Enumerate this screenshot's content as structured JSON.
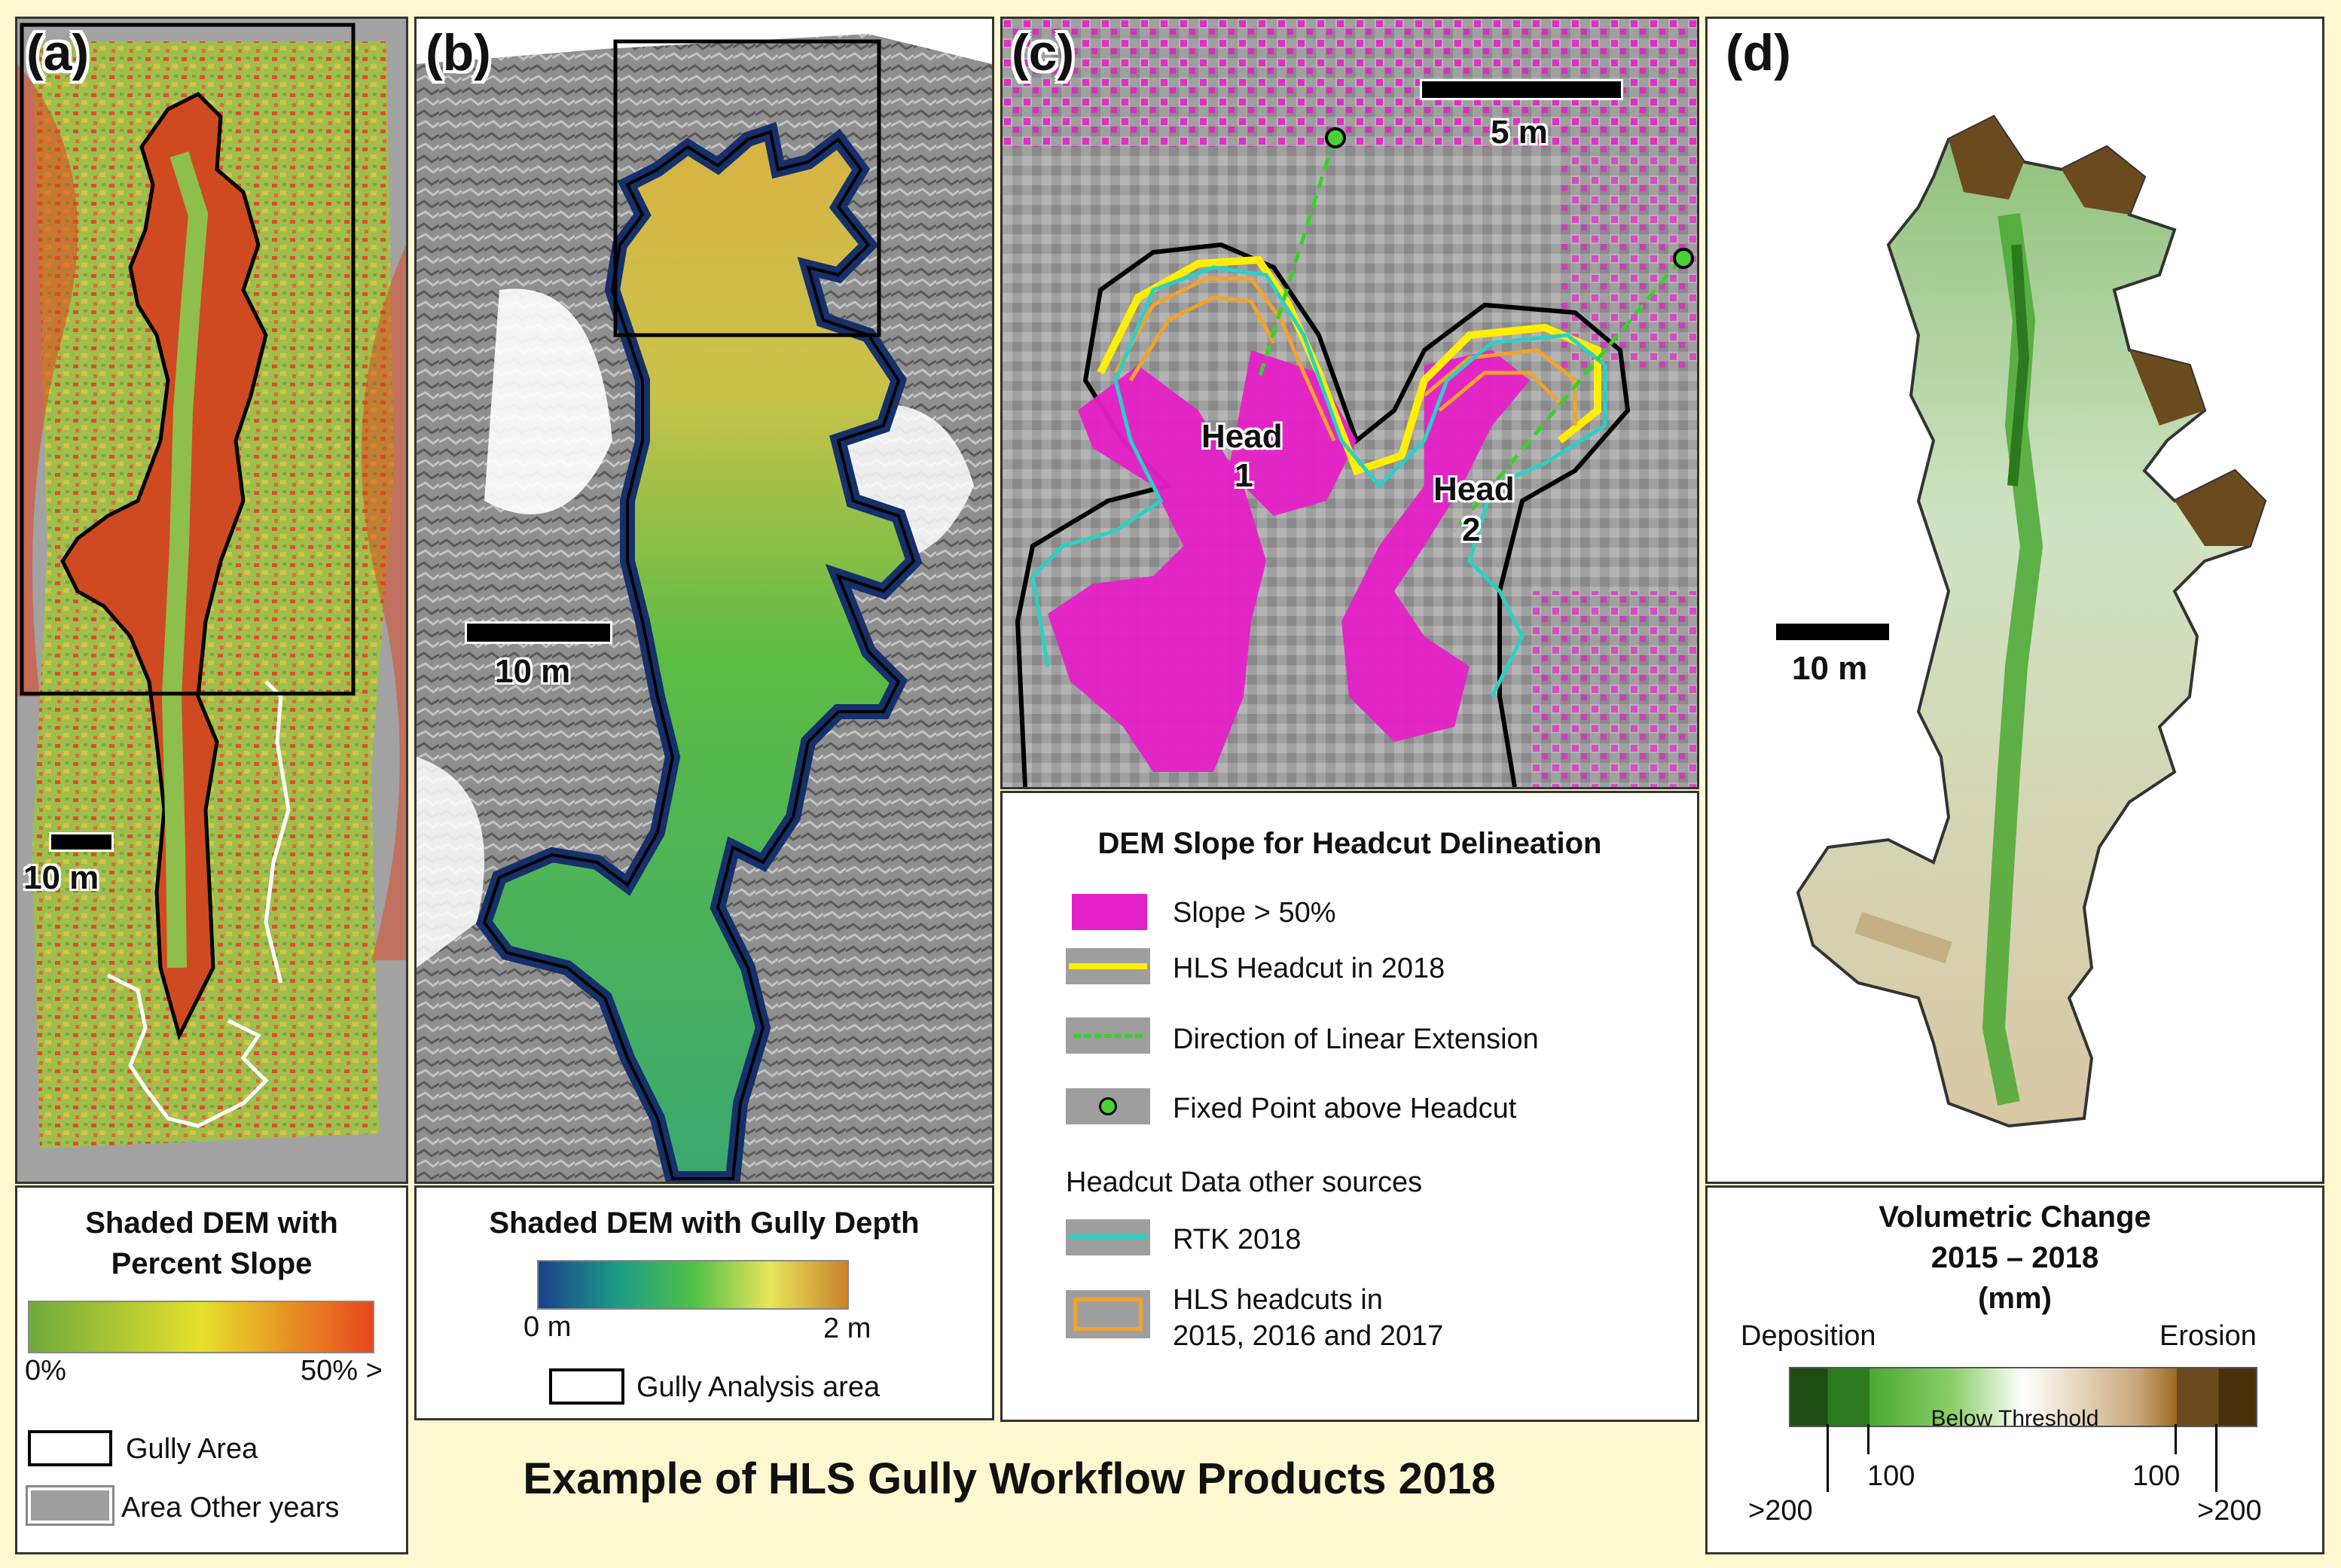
{
  "figure_title": "Example of HLS Gully Workflow Products 2018",
  "panels": {
    "a": {
      "label": "(a)",
      "scale_text": "10 m",
      "legend_title_line1": "Shaded DEM with",
      "legend_title_line2": "Percent Slope",
      "ramp_min": "0%",
      "ramp_max": "50% >",
      "item_gully": "Gully Area",
      "item_other": "Area Other years",
      "ramp_colors": [
        "#6faa3c",
        "#e6e12a",
        "#e8461e"
      ]
    },
    "b": {
      "label": "(b)",
      "scale_text": "10 m",
      "legend_title": "Shaded DEM with Gully Depth",
      "ramp_min": "0 m",
      "ramp_max": "2 m",
      "item_analysis": "Gully Analysis area",
      "ramp_colors": [
        "#1c3f8a",
        "#1b9a88",
        "#4fc146",
        "#e8e65a",
        "#c9822a"
      ]
    },
    "c": {
      "label": "(c)",
      "scale_text": "5 m",
      "head1_line1": "Head",
      "head1_line2": "1",
      "head2_line1": "Head",
      "head2_line2": "2",
      "legend_title": "DEM Slope for Headcut Delineation",
      "item_slope": "Slope > 50%",
      "item_hls2018": "HLS Headcut in 2018",
      "item_direction": "Direction of Linear Extension",
      "item_fixed": "Fixed Point above Headcut",
      "other_sources_title": "Headcut Data other sources",
      "item_rtk": "RTK 2018",
      "item_hls_prev_line1": "HLS headcuts in",
      "item_hls_prev_line2": "2015, 2016 and 2017",
      "colors": {
        "slope": "#e620c8",
        "hls2018": "#ffee00",
        "direction": "#39d12a",
        "fixed_point": "#4cd137",
        "rtk": "#2ad1c4",
        "hls_prev": "#f2a32a"
      }
    },
    "d": {
      "label": "(d)",
      "scale_text": "10 m",
      "legend_title_line1": "Volumetric Change",
      "legend_title_line2": "2015 – 2018",
      "legend_title_line3": "(mm)",
      "deposition": "Deposition",
      "erosion": "Erosion",
      "below_threshold": "Below Threshold",
      "tick_dep_200": ">200",
      "tick_dep_100": "100",
      "tick_ero_100": "100",
      "tick_ero_200": ">200",
      "ramp_colors": [
        "#1d4d12",
        "#2b7a1e",
        "#4aa832",
        "#ffffff",
        "#c7a57a",
        "#9a6a1e",
        "#4a300a"
      ]
    }
  }
}
